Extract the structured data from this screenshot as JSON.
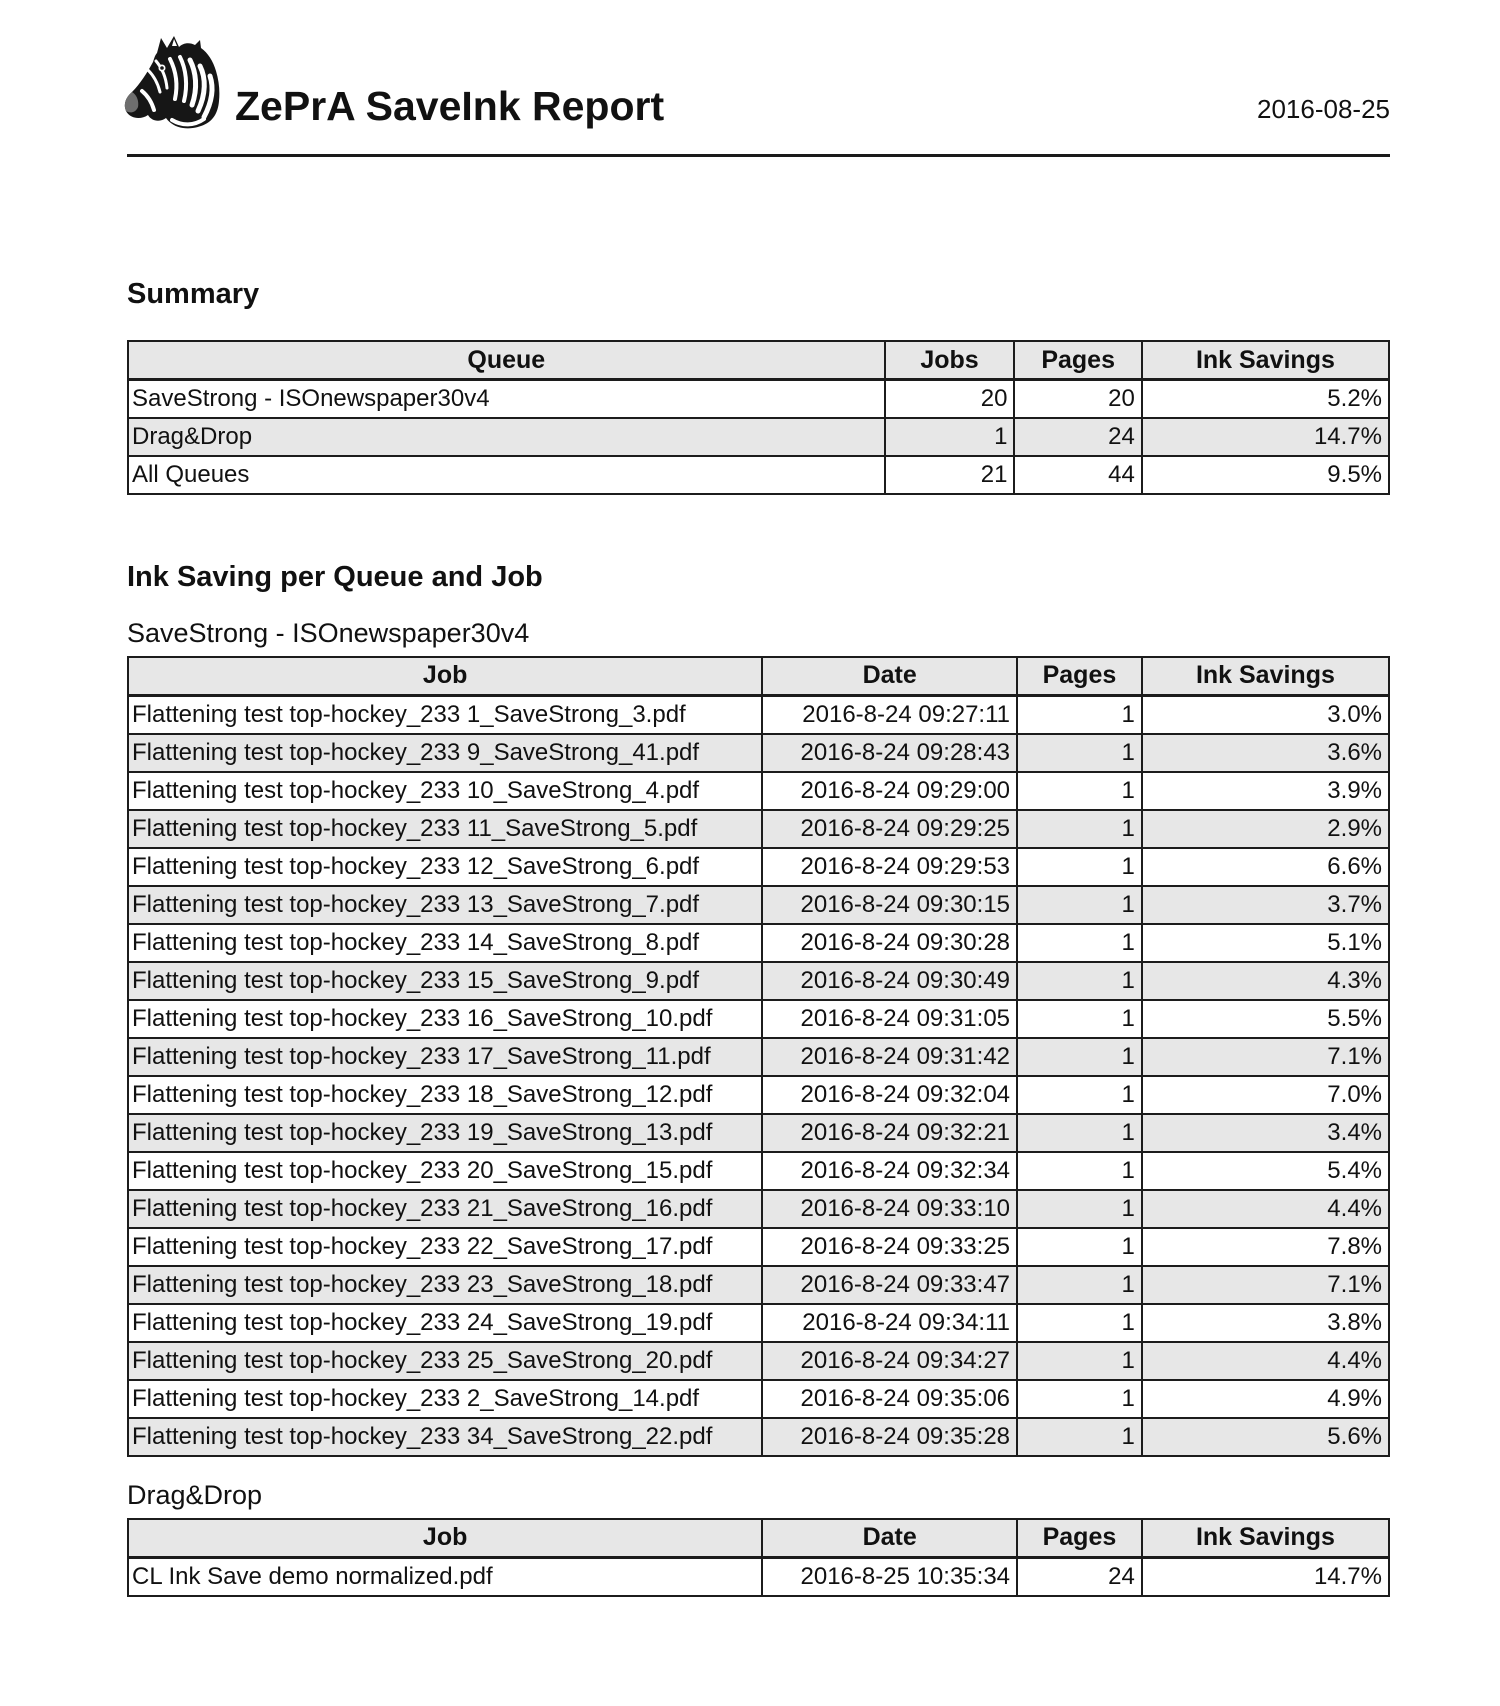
{
  "header": {
    "title": "ZePrA SaveInk Report",
    "date": "2016-08-25",
    "logo": "zebra-logo"
  },
  "summary": {
    "heading": "Summary",
    "columns": [
      "Queue",
      "Jobs",
      "Pages",
      "Ink Savings"
    ],
    "rows": [
      {
        "queue": "SaveStrong - ISOnewspaper30v4",
        "jobs": "20",
        "pages": "20",
        "savings": "5.2%"
      },
      {
        "queue": "Drag&Drop",
        "jobs": "1",
        "pages": "24",
        "savings": "14.7%"
      },
      {
        "queue": "All Queues",
        "jobs": "21",
        "pages": "44",
        "savings": "9.5%"
      }
    ]
  },
  "detail": {
    "heading": "Ink Saving per Queue and Job",
    "columns": [
      "Job",
      "Date",
      "Pages",
      "Ink Savings"
    ],
    "queues": [
      {
        "caption": "SaveStrong - ISOnewspaper30v4",
        "rows": [
          {
            "job": "Flattening test top-hockey_233 1_SaveStrong_3.pdf",
            "date": "2016-8-24 09:27:11",
            "pages": "1",
            "savings": "3.0%"
          },
          {
            "job": "Flattening test top-hockey_233 9_SaveStrong_41.pdf",
            "date": "2016-8-24 09:28:43",
            "pages": "1",
            "savings": "3.6%"
          },
          {
            "job": "Flattening test top-hockey_233 10_SaveStrong_4.pdf",
            "date": "2016-8-24 09:29:00",
            "pages": "1",
            "savings": "3.9%"
          },
          {
            "job": "Flattening test top-hockey_233 11_SaveStrong_5.pdf",
            "date": "2016-8-24 09:29:25",
            "pages": "1",
            "savings": "2.9%"
          },
          {
            "job": "Flattening test top-hockey_233 12_SaveStrong_6.pdf",
            "date": "2016-8-24 09:29:53",
            "pages": "1",
            "savings": "6.6%"
          },
          {
            "job": "Flattening test top-hockey_233 13_SaveStrong_7.pdf",
            "date": "2016-8-24 09:30:15",
            "pages": "1",
            "savings": "3.7%"
          },
          {
            "job": "Flattening test top-hockey_233 14_SaveStrong_8.pdf",
            "date": "2016-8-24 09:30:28",
            "pages": "1",
            "savings": "5.1%"
          },
          {
            "job": "Flattening test top-hockey_233 15_SaveStrong_9.pdf",
            "date": "2016-8-24 09:30:49",
            "pages": "1",
            "savings": "4.3%"
          },
          {
            "job": "Flattening test top-hockey_233 16_SaveStrong_10.pdf",
            "date": "2016-8-24 09:31:05",
            "pages": "1",
            "savings": "5.5%"
          },
          {
            "job": "Flattening test top-hockey_233 17_SaveStrong_11.pdf",
            "date": "2016-8-24 09:31:42",
            "pages": "1",
            "savings": "7.1%"
          },
          {
            "job": "Flattening test top-hockey_233 18_SaveStrong_12.pdf",
            "date": "2016-8-24 09:32:04",
            "pages": "1",
            "savings": "7.0%"
          },
          {
            "job": "Flattening test top-hockey_233 19_SaveStrong_13.pdf",
            "date": "2016-8-24 09:32:21",
            "pages": "1",
            "savings": "3.4%"
          },
          {
            "job": "Flattening test top-hockey_233 20_SaveStrong_15.pdf",
            "date": "2016-8-24 09:32:34",
            "pages": "1",
            "savings": "5.4%"
          },
          {
            "job": "Flattening test top-hockey_233 21_SaveStrong_16.pdf",
            "date": "2016-8-24 09:33:10",
            "pages": "1",
            "savings": "4.4%"
          },
          {
            "job": "Flattening test top-hockey_233 22_SaveStrong_17.pdf",
            "date": "2016-8-24 09:33:25",
            "pages": "1",
            "savings": "7.8%"
          },
          {
            "job": "Flattening test top-hockey_233 23_SaveStrong_18.pdf",
            "date": "2016-8-24 09:33:47",
            "pages": "1",
            "savings": "7.1%"
          },
          {
            "job": "Flattening test top-hockey_233 24_SaveStrong_19.pdf",
            "date": "2016-8-24 09:34:11",
            "pages": "1",
            "savings": "3.8%"
          },
          {
            "job": "Flattening test top-hockey_233 25_SaveStrong_20.pdf",
            "date": "2016-8-24 09:34:27",
            "pages": "1",
            "savings": "4.4%"
          },
          {
            "job": "Flattening test top-hockey_233 2_SaveStrong_14.pdf",
            "date": "2016-8-24 09:35:06",
            "pages": "1",
            "savings": "4.9%"
          },
          {
            "job": "Flattening test top-hockey_233 34_SaveStrong_22.pdf",
            "date": "2016-8-24 09:35:28",
            "pages": "1",
            "savings": "5.6%"
          }
        ]
      },
      {
        "caption": "Drag&Drop",
        "rows": [
          {
            "job": "CL Ink Save demo normalized.pdf",
            "date": "2016-8-25 10:35:34",
            "pages": "24",
            "savings": "14.7%"
          }
        ]
      }
    ]
  },
  "colors": {
    "stripe": "#e7e7e7",
    "border": "#1c1c1c",
    "rule": "#1a1a1a",
    "text": "#111111"
  }
}
